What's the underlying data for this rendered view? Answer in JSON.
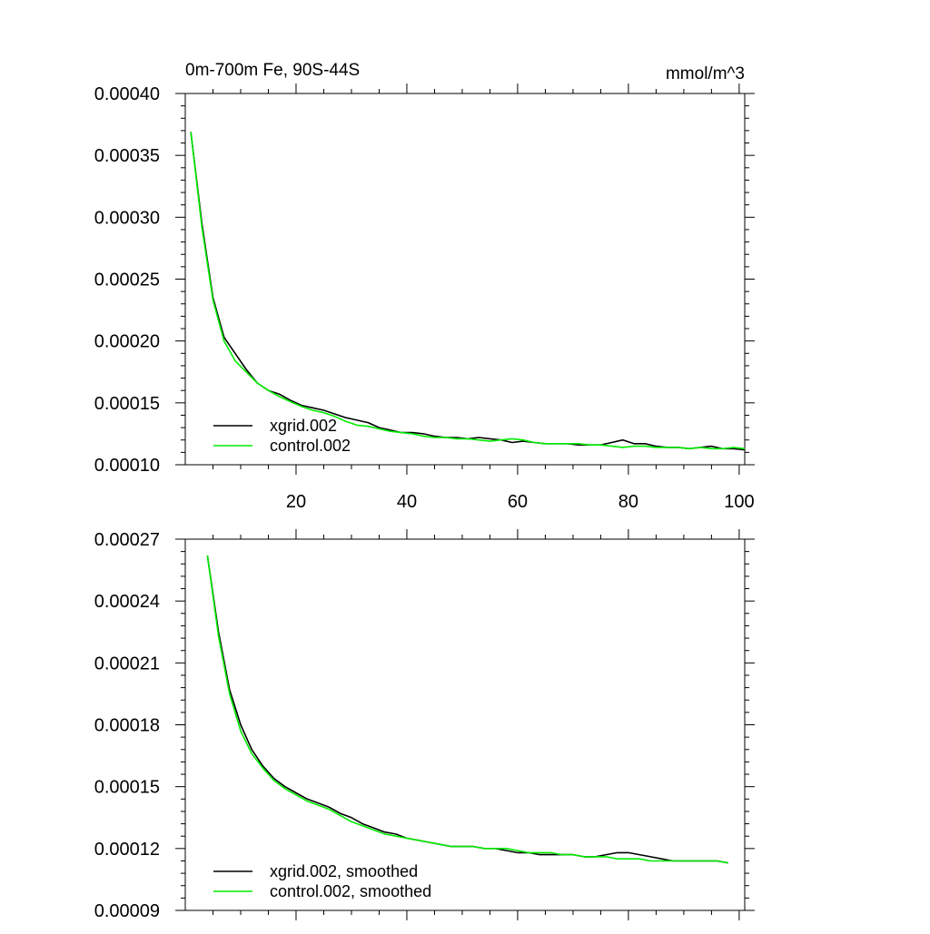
{
  "chart_data": [
    {
      "type": "line",
      "title_left": "0m-700m Fe, 90S-44S",
      "title_right": "mmol/m^3",
      "xlim": [
        0,
        101
      ],
      "ylim": [
        0.0001,
        0.0004
      ],
      "yticks": [
        "0.00010",
        "0.00015",
        "0.00020",
        "0.00025",
        "0.00030",
        "0.00035",
        "0.00040"
      ],
      "ytick_values": [
        0.0001,
        0.00015,
        0.0002,
        0.00025,
        0.0003,
        0.00035,
        0.0004
      ],
      "xticks": [
        "20",
        "40",
        "60",
        "80",
        "100"
      ],
      "xtick_values": [
        20,
        40,
        60,
        80,
        100
      ],
      "legend_position": "bottom-left",
      "series": [
        {
          "name": "xgrid.002",
          "color": "#000000",
          "points": [
            [
              1,
              0.000369
            ],
            [
              3,
              0.000295
            ],
            [
              5,
              0.000235
            ],
            [
              7,
              0.000203
            ],
            [
              9,
              0.00019
            ],
            [
              11,
              0.000177
            ],
            [
              13,
              0.000166
            ],
            [
              15,
              0.00016
            ],
            [
              17,
              0.000157
            ],
            [
              19,
              0.000152
            ],
            [
              21,
              0.000148
            ],
            [
              23,
              0.000146
            ],
            [
              25,
              0.000144
            ],
            [
              27,
              0.000141
            ],
            [
              29,
              0.000138
            ],
            [
              31,
              0.000136
            ],
            [
              33,
              0.000134
            ],
            [
              35,
              0.00013
            ],
            [
              37,
              0.000128
            ],
            [
              39,
              0.000126
            ],
            [
              41,
              0.000126
            ],
            [
              43,
              0.000125
            ],
            [
              45,
              0.000123
            ],
            [
              47,
              0.000122
            ],
            [
              49,
              0.000122
            ],
            [
              51,
              0.000121
            ],
            [
              53,
              0.000122
            ],
            [
              55,
              0.000121
            ],
            [
              57,
              0.00012
            ],
            [
              59,
              0.000118
            ],
            [
              61,
              0.000119
            ],
            [
              63,
              0.000118
            ],
            [
              65,
              0.000117
            ],
            [
              67,
              0.000117
            ],
            [
              69,
              0.000117
            ],
            [
              71,
              0.000116
            ],
            [
              73,
              0.000116
            ],
            [
              75,
              0.000116
            ],
            [
              77,
              0.000118
            ],
            [
              79,
              0.00012
            ],
            [
              81,
              0.000117
            ],
            [
              83,
              0.000117
            ],
            [
              85,
              0.000115
            ],
            [
              87,
              0.000114
            ],
            [
              89,
              0.000114
            ],
            [
              91,
              0.000113
            ],
            [
              93,
              0.000114
            ],
            [
              95,
              0.000115
            ],
            [
              97,
              0.000113
            ],
            [
              99,
              0.000113
            ],
            [
              101,
              0.000112
            ]
          ]
        },
        {
          "name": "control.002",
          "color": "#00ee00",
          "points": [
            [
              1,
              0.000369
            ],
            [
              3,
              0.000292
            ],
            [
              5,
              0.000233
            ],
            [
              7,
              0.0002
            ],
            [
              9,
              0.000184
            ],
            [
              11,
              0.000175
            ],
            [
              13,
              0.000166
            ],
            [
              15,
              0.00016
            ],
            [
              17,
              0.000155
            ],
            [
              19,
              0.000151
            ],
            [
              21,
              0.000147
            ],
            [
              23,
              0.000144
            ],
            [
              25,
              0.000142
            ],
            [
              27,
              0.000139
            ],
            [
              29,
              0.000135
            ],
            [
              31,
              0.000132
            ],
            [
              33,
              0.000131
            ],
            [
              35,
              0.000129
            ],
            [
              37,
              0.000127
            ],
            [
              39,
              0.000126
            ],
            [
              41,
              0.000125
            ],
            [
              43,
              0.000123
            ],
            [
              45,
              0.000122
            ],
            [
              47,
              0.000122
            ],
            [
              49,
              0.000121
            ],
            [
              51,
              0.000121
            ],
            [
              53,
              0.00012
            ],
            [
              55,
              0.000119
            ],
            [
              57,
              0.00012
            ],
            [
              59,
              0.000121
            ],
            [
              61,
              0.00012
            ],
            [
              63,
              0.000118
            ],
            [
              65,
              0.000117
            ],
            [
              67,
              0.000117
            ],
            [
              69,
              0.000117
            ],
            [
              71,
              0.000117
            ],
            [
              73,
              0.000116
            ],
            [
              75,
              0.000116
            ],
            [
              77,
              0.000115
            ],
            [
              79,
              0.000114
            ],
            [
              81,
              0.000115
            ],
            [
              83,
              0.000115
            ],
            [
              85,
              0.000114
            ],
            [
              87,
              0.000114
            ],
            [
              89,
              0.000114
            ],
            [
              91,
              0.000113
            ],
            [
              93,
              0.000114
            ],
            [
              95,
              0.000113
            ],
            [
              97,
              0.000113
            ],
            [
              99,
              0.000114
            ],
            [
              101,
              0.000113
            ]
          ]
        }
      ]
    },
    {
      "type": "line",
      "xlim": [
        0,
        101
      ],
      "ylim": [
        9e-05,
        0.00027
      ],
      "yticks": [
        "0.00009",
        "0.00012",
        "0.00015",
        "0.00018",
        "0.00021",
        "0.00024",
        "0.00027"
      ],
      "ytick_values": [
        9e-05,
        0.00012,
        0.00015,
        0.00018,
        0.00021,
        0.00024,
        0.00027
      ],
      "xtick_values": [
        20,
        40,
        60,
        80,
        100
      ],
      "legend_position": "bottom-left",
      "series": [
        {
          "name": "xgrid.002, smoothed",
          "color": "#000000",
          "points": [
            [
              4,
              0.000262
            ],
            [
              6,
              0.000225
            ],
            [
              8,
              0.000197
            ],
            [
              10,
              0.00018
            ],
            [
              12,
              0.000168
            ],
            [
              14,
              0.00016
            ],
            [
              16,
              0.000154
            ],
            [
              18,
              0.00015
            ],
            [
              20,
              0.000147
            ],
            [
              22,
              0.000144
            ],
            [
              24,
              0.000142
            ],
            [
              26,
              0.00014
            ],
            [
              28,
              0.000137
            ],
            [
              30,
              0.000135
            ],
            [
              32,
              0.000132
            ],
            [
              34,
              0.00013
            ],
            [
              36,
              0.000128
            ],
            [
              38,
              0.000127
            ],
            [
              40,
              0.000125
            ],
            [
              42,
              0.000124
            ],
            [
              44,
              0.000123
            ],
            [
              46,
              0.000122
            ],
            [
              48,
              0.000121
            ],
            [
              50,
              0.000121
            ],
            [
              52,
              0.000121
            ],
            [
              54,
              0.00012
            ],
            [
              56,
              0.00012
            ],
            [
              58,
              0.000119
            ],
            [
              60,
              0.000118
            ],
            [
              62,
              0.000118
            ],
            [
              64,
              0.000117
            ],
            [
              66,
              0.000117
            ],
            [
              68,
              0.000117
            ],
            [
              70,
              0.000117
            ],
            [
              72,
              0.000116
            ],
            [
              74,
              0.000116
            ],
            [
              76,
              0.000117
            ],
            [
              78,
              0.000118
            ],
            [
              80,
              0.000118
            ],
            [
              82,
              0.000117
            ],
            [
              84,
              0.000116
            ],
            [
              86,
              0.000115
            ],
            [
              88,
              0.000114
            ],
            [
              90,
              0.000114
            ],
            [
              92,
              0.000114
            ],
            [
              94,
              0.000114
            ],
            [
              96,
              0.000114
            ],
            [
              98,
              0.000113
            ]
          ]
        },
        {
          "name": "control.002, smoothed",
          "color": "#00ee00",
          "points": [
            [
              4,
              0.000262
            ],
            [
              6,
              0.000223
            ],
            [
              8,
              0.000195
            ],
            [
              10,
              0.000177
            ],
            [
              12,
              0.000166
            ],
            [
              14,
              0.000159
            ],
            [
              16,
              0.000153
            ],
            [
              18,
              0.000149
            ],
            [
              20,
              0.000146
            ],
            [
              22,
              0.000143
            ],
            [
              24,
              0.000141
            ],
            [
              26,
              0.000139
            ],
            [
              28,
              0.000136
            ],
            [
              30,
              0.000133
            ],
            [
              32,
              0.000131
            ],
            [
              34,
              0.000129
            ],
            [
              36,
              0.000127
            ],
            [
              38,
              0.000126
            ],
            [
              40,
              0.000125
            ],
            [
              42,
              0.000124
            ],
            [
              44,
              0.000123
            ],
            [
              46,
              0.000122
            ],
            [
              48,
              0.000121
            ],
            [
              50,
              0.000121
            ],
            [
              52,
              0.000121
            ],
            [
              54,
              0.00012
            ],
            [
              56,
              0.00012
            ],
            [
              58,
              0.00012
            ],
            [
              60,
              0.000119
            ],
            [
              62,
              0.000118
            ],
            [
              64,
              0.000118
            ],
            [
              66,
              0.000118
            ],
            [
              68,
              0.000117
            ],
            [
              70,
              0.000117
            ],
            [
              72,
              0.000116
            ],
            [
              74,
              0.000116
            ],
            [
              76,
              0.000116
            ],
            [
              78,
              0.000115
            ],
            [
              80,
              0.000115
            ],
            [
              82,
              0.000115
            ],
            [
              84,
              0.000114
            ],
            [
              86,
              0.000114
            ],
            [
              88,
              0.000114
            ],
            [
              90,
              0.000114
            ],
            [
              92,
              0.000114
            ],
            [
              94,
              0.000114
            ],
            [
              96,
              0.000114
            ],
            [
              98,
              0.000113
            ]
          ]
        }
      ]
    }
  ]
}
